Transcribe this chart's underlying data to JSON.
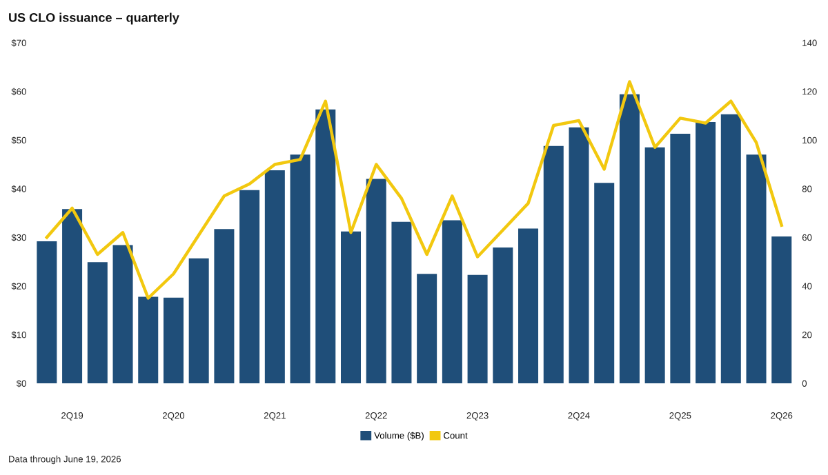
{
  "chart_data": {
    "type": "bar",
    "title": "US CLO issuance – quarterly",
    "categories": [
      null,
      "2Q19",
      null,
      null,
      null,
      "2Q20",
      null,
      null,
      null,
      "2Q21",
      null,
      null,
      null,
      "2Q22",
      null,
      null,
      null,
      "2Q23",
      null,
      null,
      null,
      "2Q24",
      null,
      null,
      null,
      "2Q25",
      null,
      null,
      null,
      "2Q26"
    ],
    "series": [
      {
        "name": "Volume ($B)",
        "color": "#1f4e79",
        "values": [
          29.2,
          35.8,
          24.9,
          28.4,
          17.8,
          17.6,
          25.7,
          31.7,
          39.7,
          43.8,
          47.0,
          56.3,
          31.2,
          42.0,
          33.2,
          22.5,
          33.5,
          22.3,
          27.9,
          31.8,
          48.8,
          52.6,
          41.2,
          59.4,
          48.5,
          51.3,
          53.7,
          55.3,
          47.0,
          30.2
        ]
      },
      {
        "name": "Count",
        "type": "line",
        "axis": "y2",
        "color": "#f2c80f",
        "values": [
          60,
          72,
          53,
          62,
          35,
          45,
          61,
          77,
          82,
          90,
          92,
          116,
          62,
          90,
          76,
          53,
          77,
          52,
          63,
          74,
          106,
          108,
          88,
          124,
          97,
          109,
          107,
          116,
          99,
          65
        ]
      }
    ],
    "ylim": [
      0,
      70
    ],
    "yticks": [
      {
        "value": 0,
        "label": "$0"
      },
      {
        "value": 10,
        "label": "$10"
      },
      {
        "value": 20,
        "label": "$20"
      },
      {
        "value": 30,
        "label": "$30"
      },
      {
        "value": 40,
        "label": "$40"
      },
      {
        "value": 50,
        "label": "$50"
      },
      {
        "value": 60,
        "label": "$60"
      },
      {
        "value": 70,
        "label": "$70"
      }
    ],
    "y2lim": [
      0,
      140
    ],
    "y2ticks": [
      0,
      20,
      40,
      60,
      80,
      100,
      120,
      140
    ],
    "grid": false,
    "legend": "bottom",
    "line_style": "solid",
    "annotations": [
      "Data through June 19, 2026"
    ]
  }
}
